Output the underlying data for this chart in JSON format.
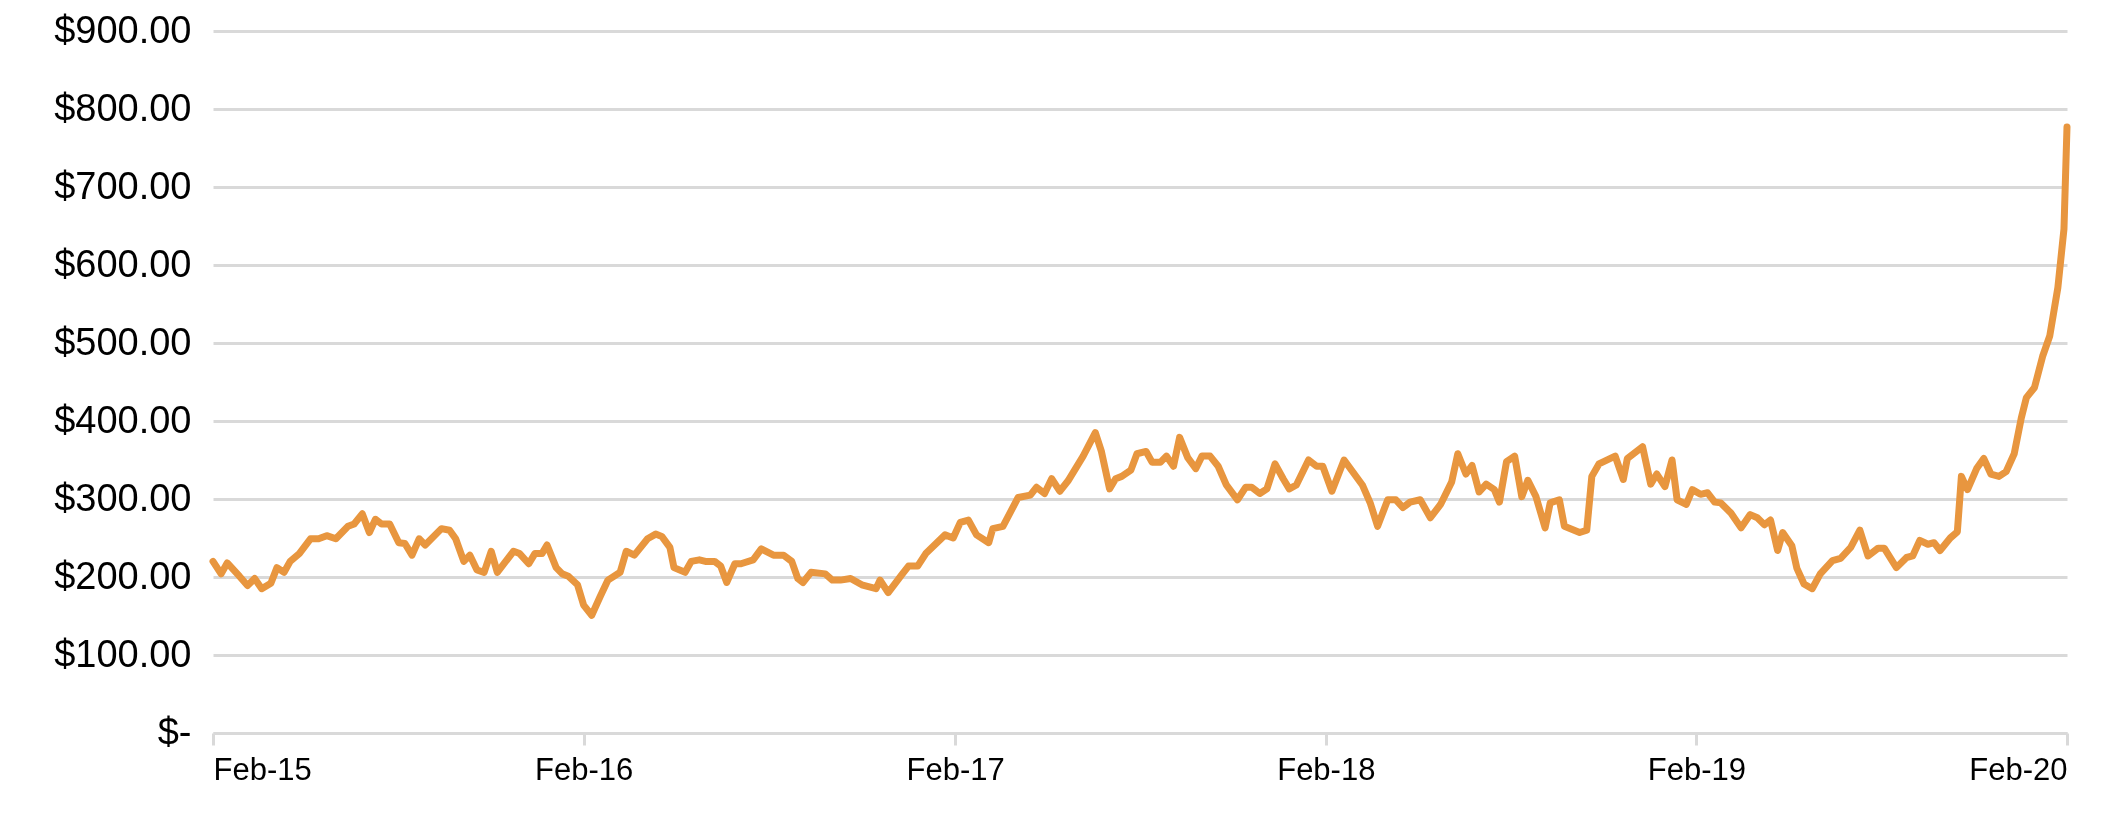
{
  "chart_data": {
    "type": "line",
    "grid": "y",
    "line_style": "solid",
    "xlim": [
      "2015-02-01",
      "2020-02-01"
    ],
    "xticks": [
      {
        "value": "2015-02-01",
        "label": "Feb-15"
      },
      {
        "value": "2016-02-01",
        "label": "Feb-16"
      },
      {
        "value": "2017-02-01",
        "label": "Feb-17"
      },
      {
        "value": "2018-02-01",
        "label": "Feb-18"
      },
      {
        "value": "2019-02-01",
        "label": "Feb-19"
      },
      {
        "value": "2020-02-01",
        "label": "Feb-20"
      }
    ],
    "ylim": [
      0,
      900
    ],
    "yticks": [
      {
        "value": 0,
        "label": "$-"
      },
      {
        "value": 100,
        "label": "$100.00"
      },
      {
        "value": 200,
        "label": "$200.00"
      },
      {
        "value": 300,
        "label": "$300.00"
      },
      {
        "value": 400,
        "label": "$400.00"
      },
      {
        "value": 500,
        "label": "$500.00"
      },
      {
        "value": 600,
        "label": "$600.00"
      },
      {
        "value": 700,
        "label": "$700.00"
      },
      {
        "value": 800,
        "label": "$800.00"
      },
      {
        "value": 900,
        "label": "$900.00"
      }
    ],
    "x": [
      "2015-02-01",
      "2015-02-09",
      "2015-02-15",
      "2015-02-27",
      "2015-03-07",
      "2015-03-14",
      "2015-03-21",
      "2015-03-30",
      "2015-04-05",
      "2015-04-12",
      "2015-04-18",
      "2015-04-27",
      "2015-05-08",
      "2015-05-16",
      "2015-05-24",
      "2015-06-02",
      "2015-06-14",
      "2015-06-20",
      "2015-06-28",
      "2015-07-05",
      "2015-07-11",
      "2015-07-17",
      "2015-07-25",
      "2015-08-03",
      "2015-08-09",
      "2015-08-16",
      "2015-08-23",
      "2015-08-29",
      "2015-09-14",
      "2015-09-22",
      "2015-09-28",
      "2015-10-06",
      "2015-10-12",
      "2015-10-19",
      "2015-10-26",
      "2015-11-02",
      "2015-11-08",
      "2015-11-24",
      "2015-11-30",
      "2015-12-09",
      "2015-12-15",
      "2015-12-22",
      "2015-12-27",
      "2016-01-05",
      "2016-01-11",
      "2016-01-17",
      "2016-01-26",
      "2016-02-01",
      "2016-02-09",
      "2016-02-17",
      "2016-02-25",
      "2016-03-08",
      "2016-03-14",
      "2016-03-22",
      "2016-04-04",
      "2016-04-12",
      "2016-04-18",
      "2016-04-26",
      "2016-04-30",
      "2016-05-11",
      "2016-05-17",
      "2016-05-25",
      "2016-05-31",
      "2016-06-09",
      "2016-06-15",
      "2016-06-21",
      "2016-06-29",
      "2016-07-05",
      "2016-07-17",
      "2016-07-25",
      "2016-08-06",
      "2016-08-16",
      "2016-08-24",
      "2016-08-30",
      "2016-09-04",
      "2016-09-12",
      "2016-09-26",
      "2016-10-03",
      "2016-10-11",
      "2016-10-21",
      "2016-11-01",
      "2016-11-15",
      "2016-11-19",
      "2016-11-27",
      "2016-12-11",
      "2016-12-17",
      "2016-12-26",
      "2017-01-03",
      "2017-01-22",
      "2017-01-30",
      "2017-02-06",
      "2017-02-14",
      "2017-02-22",
      "2017-03-06",
      "2017-03-10",
      "2017-03-20",
      "2017-04-04",
      "2017-04-16",
      "2017-04-22",
      "2017-04-30",
      "2017-05-07",
      "2017-05-15",
      "2017-05-23",
      "2017-06-07",
      "2017-06-19",
      "2017-06-25",
      "2017-07-03",
      "2017-07-09",
      "2017-07-15",
      "2017-07-24",
      "2017-07-30",
      "2017-08-08",
      "2017-08-14",
      "2017-08-22",
      "2017-08-28",
      "2017-09-04",
      "2017-09-10",
      "2017-09-18",
      "2017-09-26",
      "2017-10-02",
      "2017-10-10",
      "2017-10-18",
      "2017-10-26",
      "2017-11-06",
      "2017-11-14",
      "2017-11-20",
      "2017-11-28",
      "2017-12-05",
      "2017-12-13",
      "2017-12-21",
      "2017-12-27",
      "2018-01-03",
      "2018-01-15",
      "2018-01-23",
      "2018-01-29",
      "2018-02-07",
      "2018-02-19",
      "2018-02-28",
      "2018-03-09",
      "2018-03-17",
      "2018-03-24",
      "2018-04-03",
      "2018-04-11",
      "2018-04-18",
      "2018-04-25",
      "2018-05-05",
      "2018-05-15",
      "2018-05-25",
      "2018-06-05",
      "2018-06-11",
      "2018-06-19",
      "2018-06-25",
      "2018-07-02",
      "2018-07-09",
      "2018-07-17",
      "2018-07-22",
      "2018-07-29",
      "2018-08-06",
      "2018-08-13",
      "2018-08-19",
      "2018-08-27",
      "2018-09-05",
      "2018-09-10",
      "2018-09-19",
      "2018-09-24",
      "2018-10-09",
      "2018-10-16",
      "2018-10-21",
      "2018-10-28",
      "2018-11-13",
      "2018-11-21",
      "2018-11-25",
      "2018-12-10",
      "2018-12-18",
      "2018-12-24",
      "2019-01-01",
      "2019-01-08",
      "2019-01-13",
      "2019-01-22",
      "2019-01-28",
      "2019-02-05",
      "2019-02-12",
      "2019-02-19",
      "2019-02-25",
      "2019-03-07",
      "2019-03-17",
      "2019-03-26",
      "2019-04-02",
      "2019-04-09",
      "2019-04-15",
      "2019-04-22",
      "2019-04-27",
      "2019-05-06",
      "2019-05-11",
      "2019-05-18",
      "2019-05-26",
      "2019-06-03",
      "2019-06-15",
      "2019-06-23",
      "2019-07-03",
      "2019-07-12",
      "2019-07-20",
      "2019-07-30",
      "2019-08-05",
      "2019-08-17",
      "2019-08-27",
      "2019-09-02",
      "2019-09-09",
      "2019-09-17",
      "2019-09-23",
      "2019-09-29",
      "2019-10-09",
      "2019-10-16",
      "2019-10-20",
      "2019-10-26",
      "2019-11-04",
      "2019-11-11",
      "2019-11-18",
      "2019-11-26",
      "2019-12-03",
      "2019-12-11",
      "2019-12-18",
      "2019-12-23",
      "2019-12-31",
      "2020-01-08",
      "2020-01-15",
      "2020-01-23",
      "2020-01-29",
      "2020-02-01"
    ],
    "series": [
      {
        "color": "#e8963f",
        "values": [
          220,
          204,
          218,
          201,
          189,
          198,
          185,
          192,
          212,
          206,
          220,
          230,
          249,
          249,
          253,
          249,
          265,
          268,
          281,
          257,
          274,
          268,
          268,
          244,
          243,
          228,
          249,
          241,
          262,
          260,
          249,
          220,
          228,
          209,
          206,
          233,
          206,
          233,
          230,
          217,
          230,
          230,
          241,
          212,
          204,
          201,
          190,
          164,
          151,
          174,
          196,
          206,
          233,
          228,
          249,
          255,
          252,
          238,
          212,
          206,
          220,
          222,
          220,
          220,
          214,
          193,
          217,
          217,
          222,
          236,
          228,
          228,
          220,
          198,
          193,
          206,
          204,
          196,
          196,
          198,
          190,
          185,
          196,
          180,
          204,
          214,
          214,
          230,
          254,
          250,
          270,
          273,
          254,
          244,
          262,
          265,
          302,
          305,
          315,
          307,
          326,
          310,
          323,
          355,
          385,
          361,
          313,
          326,
          329,
          337,
          358,
          361,
          347,
          347,
          355,
          342,
          379,
          353,
          339,
          355,
          355,
          342,
          318,
          299,
          315,
          315,
          307,
          313,
          345,
          326,
          313,
          318,
          350,
          342,
          342,
          310,
          350,
          334,
          318,
          294,
          265,
          299,
          299,
          289,
          296,
          299,
          276,
          293,
          322,
          358,
          332,
          343,
          309,
          319,
          312,
          296,
          348,
          355,
          303,
          324,
          303,
          263,
          295,
          299,
          265,
          257,
          260,
          329,
          345,
          355,
          325,
          352,
          367,
          319,
          332,
          316,
          350,
          299,
          293,
          312,
          306,
          308,
          296,
          295,
          282,
          263,
          280,
          276,
          267,
          273,
          234,
          257,
          240,
          211,
          191,
          185,
          204,
          221,
          224,
          238,
          260,
          227,
          237,
          237,
          212,
          225,
          227,
          247,
          242,
          244,
          234,
          250,
          258,
          329,
          312,
          339,
          352,
          332,
          329,
          335,
          358,
          404,
          430,
          443,
          483,
          509,
          571,
          646,
          777
        ]
      }
    ]
  }
}
